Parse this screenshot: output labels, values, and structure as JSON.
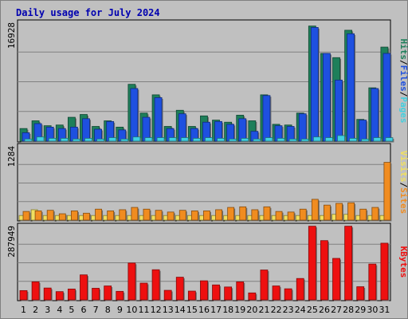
{
  "chart_data": [
    {
      "type": "bar",
      "title": "Daily usage for July 2024",
      "categories": [
        "1",
        "2",
        "3",
        "4",
        "5",
        "6",
        "7",
        "8",
        "9",
        "10",
        "11",
        "12",
        "13",
        "14",
        "15",
        "16",
        "17",
        "18",
        "19",
        "20",
        "21",
        "22",
        "23",
        "24",
        "25",
        "26",
        "27",
        "28",
        "29",
        "30",
        "31"
      ],
      "weekend_days": [
        "6",
        "7",
        "13",
        "14",
        "20",
        "21",
        "27",
        "28"
      ],
      "ymax_label": "16928",
      "ylim": [
        0,
        16928
      ],
      "right_labels": [
        "Pages",
        "Files",
        "Hits"
      ],
      "series": [
        {
          "name": "Hits",
          "color": "#1e7f5a",
          "values": [
            1800,
            2900,
            2200,
            2300,
            3400,
            3800,
            2100,
            2900,
            2000,
            8100,
            4000,
            6600,
            2100,
            4400,
            2100,
            3600,
            3000,
            2700,
            3700,
            2900,
            6600,
            2400,
            2300,
            4000,
            16400,
            12500,
            11900,
            15800,
            3100,
            7600,
            13400
          ]
        },
        {
          "name": "Files",
          "color": "#1e50e0",
          "values": [
            1200,
            2500,
            2000,
            1800,
            2000,
            3200,
            1700,
            2800,
            1600,
            7500,
            3400,
            6200,
            1800,
            3900,
            1800,
            2700,
            2800,
            2400,
            3200,
            1400,
            6500,
            2200,
            2100,
            3900,
            16200,
            12500,
            8700,
            15300,
            3000,
            7500,
            12500
          ]
        },
        {
          "name": "Pages",
          "color": "#40d0e0",
          "values": [
            300,
            600,
            400,
            400,
            300,
            400,
            300,
            500,
            300,
            600,
            500,
            500,
            500,
            500,
            400,
            500,
            400,
            300,
            400,
            300,
            500,
            400,
            300,
            300,
            600,
            500,
            800,
            400,
            300,
            500,
            500
          ]
        }
      ]
    },
    {
      "type": "bar",
      "ymax_label": "1284",
      "ylim": [
        0,
        1284
      ],
      "right_labels": [
        "Sites",
        "Visits"
      ],
      "series": [
        {
          "name": "Visits",
          "color": "#f0e060",
          "values": [
            80,
            180,
            80,
            80,
            80,
            80,
            80,
            80,
            80,
            80,
            80,
            80,
            80,
            80,
            80,
            80,
            80,
            80,
            80,
            80,
            80,
            80,
            80,
            80,
            80,
            80,
            100,
            100,
            80,
            80,
            80
          ]
        },
        {
          "name": "Sites",
          "color": "#f08c20",
          "values": [
            150,
            160,
            170,
            110,
            160,
            120,
            190,
            160,
            180,
            220,
            190,
            170,
            140,
            170,
            160,
            160,
            180,
            220,
            230,
            180,
            230,
            150,
            140,
            190,
            360,
            260,
            290,
            300,
            190,
            220,
            1000
          ]
        }
      ]
    },
    {
      "type": "bar",
      "ymax_label": "287949",
      "ylim": [
        0,
        287949
      ],
      "right_labels": [
        "KBytes"
      ],
      "series": [
        {
          "name": "KBytes",
          "color": "#ee1010",
          "values": [
            36000,
            70000,
            46000,
            32000,
            42000,
            97000,
            45000,
            54000,
            33000,
            143000,
            65000,
            117000,
            37000,
            88000,
            34000,
            74000,
            58000,
            50000,
            70000,
            27000,
            116000,
            54000,
            43000,
            83000,
            286000,
            230000,
            161000,
            286000,
            51000,
            139000,
            220000
          ]
        }
      ]
    }
  ]
}
